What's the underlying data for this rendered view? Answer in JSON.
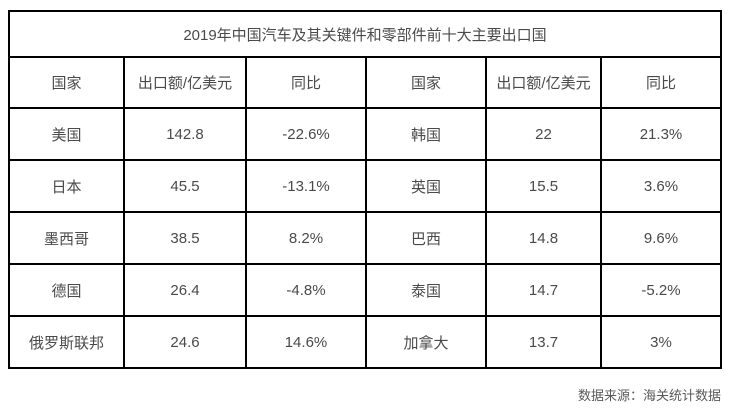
{
  "table": {
    "title": "2019年中国汽车及其关键件和零部件前十大主要出口国",
    "headers": [
      "国家",
      "出口额/亿美元",
      "同比",
      "国家",
      "出口额/亿美元",
      "同比"
    ],
    "rows": [
      [
        "美国",
        "142.8",
        "-22.6%",
        "韩国",
        "22",
        "21.3%"
      ],
      [
        "日本",
        "45.5",
        "-13.1%",
        "英国",
        "15.5",
        "3.6%"
      ],
      [
        "墨西哥",
        "38.5",
        "8.2%",
        "巴西",
        "14.8",
        "9.6%"
      ],
      [
        "德国",
        "26.4",
        "-4.8%",
        "泰国",
        "14.7",
        "-5.2%"
      ],
      [
        "俄罗斯联邦",
        "24.6",
        "14.6%",
        "加拿大",
        "13.7",
        "3%"
      ]
    ],
    "footer": "数据来源：海关统计数据"
  },
  "colors": {
    "border": "#000000",
    "text": "#4a4a4a",
    "footer_text": "#595959",
    "background": "#ffffff"
  },
  "chart_data": {
    "type": "table",
    "title": "2019年中国汽车及其关键件和零部件前十大主要出口国",
    "columns": [
      "国家",
      "出口额/亿美元",
      "同比"
    ],
    "rows": [
      {
        "country": "美国",
        "export_100m_usd": 142.8,
        "yoy_pct": -22.6
      },
      {
        "country": "日本",
        "export_100m_usd": 45.5,
        "yoy_pct": -13.1
      },
      {
        "country": "墨西哥",
        "export_100m_usd": 38.5,
        "yoy_pct": 8.2
      },
      {
        "country": "德国",
        "export_100m_usd": 26.4,
        "yoy_pct": -4.8
      },
      {
        "country": "俄罗斯联邦",
        "export_100m_usd": 24.6,
        "yoy_pct": 14.6
      },
      {
        "country": "韩国",
        "export_100m_usd": 22,
        "yoy_pct": 21.3
      },
      {
        "country": "英国",
        "export_100m_usd": 15.5,
        "yoy_pct": 3.6
      },
      {
        "country": "巴西",
        "export_100m_usd": 14.8,
        "yoy_pct": 9.6
      },
      {
        "country": "泰国",
        "export_100m_usd": 14.7,
        "yoy_pct": -5.2
      },
      {
        "country": "加拿大",
        "export_100m_usd": 13.7,
        "yoy_pct": 3
      }
    ],
    "source_note": "数据来源：海关统计数据"
  }
}
